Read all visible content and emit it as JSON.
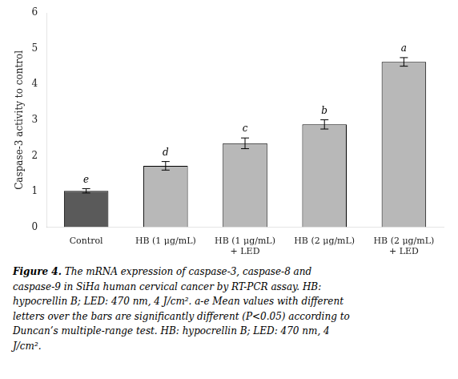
{
  "chart_data": {
    "type": "bar",
    "categories": [
      "Control",
      "HB (1 μg/mL)",
      "HB (1 μg/mL)\n+ LED",
      "HB (2 μg/mL)",
      "HB (2 μg/mL)\n+ LED"
    ],
    "values": [
      1.02,
      1.72,
      2.35,
      2.88,
      4.63
    ],
    "errors": [
      0.06,
      0.12,
      0.15,
      0.13,
      0.12
    ],
    "colors": [
      "#5a5a5a",
      "#b8b8b8",
      "#b8b8b8",
      "#b8b8b8",
      "#b8b8b8"
    ],
    "ylabel": "Caspase-3 activity to control",
    "ylim": [
      0,
      6
    ],
    "yticks": [
      0,
      1,
      2,
      3,
      4,
      5,
      6
    ],
    "grid": false,
    "annotations": [
      {
        "category": "Control",
        "text": "e"
      },
      {
        "category": "HB (1 μg/mL)",
        "text": "d"
      },
      {
        "category": "HB (1 μg/mL)\n+ LED",
        "text": "c"
      },
      {
        "category": "HB (2 μg/mL)",
        "text": "b"
      },
      {
        "category": "HB (2 μg/mL)\n+ LED",
        "text": "a"
      }
    ],
    "caption": [
      "Figure 4. The mRNA expression of caspase-3, caspase-8 and",
      "caspase-9 in SiHa human cervical cancer by RT-PCR assay. HB:",
      "hypocrellin B; LED: 470 nm, 4 J/cm². a-e Mean values with different",
      "letters over the bars are significantly different (P<0.05) according to",
      "Duncan’s multiple-range test. HB: hypocrellin B; LED: 470 nm, 4",
      "J/cm²."
    ]
  }
}
